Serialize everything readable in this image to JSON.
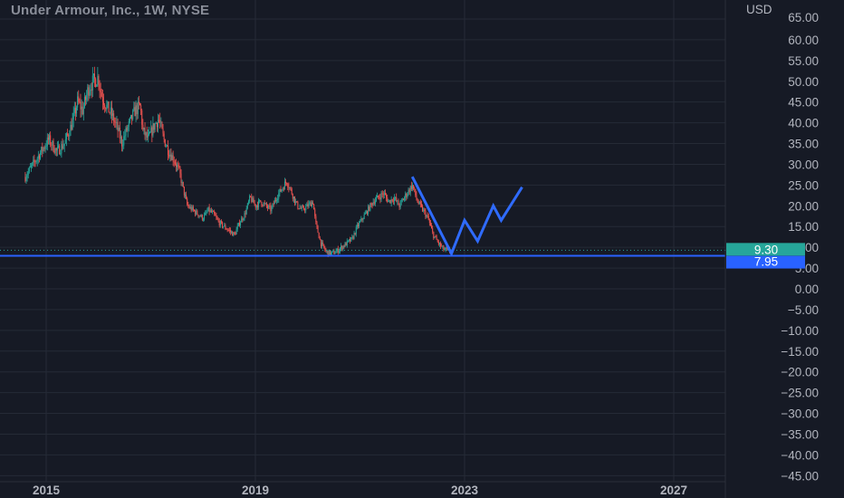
{
  "chart_data": {
    "type": "candlestick",
    "title": "Under Armour, Inc., 1W, NYSE",
    "currency": "USD",
    "ylim": [
      -46,
      66
    ],
    "xlim": [
      2014.65,
      2028.4
    ],
    "y_ticks": [
      "65.00",
      "60.00",
      "55.00",
      "50.00",
      "45.00",
      "40.00",
      "35.00",
      "30.00",
      "25.00",
      "20.00",
      "15.00",
      "10.00",
      "5.00",
      "0.00",
      "−5.00",
      "−10.00",
      "−15.00",
      "−20.00",
      "−25.00",
      "−30.00",
      "−35.00",
      "−40.00",
      "−45.00"
    ],
    "y_tick_values": [
      65,
      60,
      55,
      50,
      45,
      40,
      35,
      30,
      25,
      20,
      15,
      10,
      5,
      0,
      -5,
      -10,
      -15,
      -20,
      -25,
      -30,
      -35,
      -40,
      -45
    ],
    "x_ticks": [
      {
        "label": "2015",
        "value": 2015.0
      },
      {
        "label": "2019",
        "value": 2019.0
      },
      {
        "label": "2023",
        "value": 2023.0
      },
      {
        "label": "2027",
        "value": 2027.0
      }
    ],
    "grid": true,
    "price_path": [
      [
        2014.6,
        27
      ],
      [
        2014.75,
        30
      ],
      [
        2014.9,
        33
      ],
      [
        2015.05,
        36
      ],
      [
        2015.2,
        33
      ],
      [
        2015.35,
        35
      ],
      [
        2015.5,
        40
      ],
      [
        2015.6,
        45
      ],
      [
        2015.7,
        43
      ],
      [
        2015.8,
        48
      ],
      [
        2015.9,
        50
      ],
      [
        2016.0,
        51
      ],
      [
        2016.05,
        47
      ],
      [
        2016.15,
        44
      ],
      [
        2016.25,
        42
      ],
      [
        2016.35,
        39
      ],
      [
        2016.45,
        35
      ],
      [
        2016.5,
        37
      ],
      [
        2016.6,
        40
      ],
      [
        2016.7,
        43
      ],
      [
        2016.8,
        44
      ],
      [
        2016.85,
        38
      ],
      [
        2016.95,
        36
      ],
      [
        2017.05,
        39
      ],
      [
        2017.15,
        41
      ],
      [
        2017.25,
        36
      ],
      [
        2017.35,
        33
      ],
      [
        2017.45,
        31
      ],
      [
        2017.55,
        28
      ],
      [
        2017.62,
        24
      ],
      [
        2017.7,
        20
      ],
      [
        2017.8,
        19
      ],
      [
        2017.9,
        18
      ],
      [
        2018.0,
        17
      ],
      [
        2018.1,
        19
      ],
      [
        2018.2,
        18
      ],
      [
        2018.3,
        16
      ],
      [
        2018.4,
        15
      ],
      [
        2018.5,
        14
      ],
      [
        2018.6,
        13
      ],
      [
        2018.7,
        16
      ],
      [
        2018.8,
        18
      ],
      [
        2018.9,
        22
      ],
      [
        2019.0,
        20
      ],
      [
        2019.1,
        21
      ],
      [
        2019.2,
        20
      ],
      [
        2019.3,
        19
      ],
      [
        2019.4,
        22
      ],
      [
        2019.5,
        24
      ],
      [
        2019.6,
        26
      ],
      [
        2019.7,
        23
      ],
      [
        2019.8,
        20
      ],
      [
        2019.9,
        19
      ],
      [
        2020.0,
        20
      ],
      [
        2020.1,
        21
      ],
      [
        2020.15,
        16
      ],
      [
        2020.25,
        11
      ],
      [
        2020.35,
        9
      ],
      [
        2020.45,
        8.5
      ],
      [
        2020.55,
        9
      ],
      [
        2020.65,
        10
      ],
      [
        2020.75,
        11
      ],
      [
        2020.85,
        12
      ],
      [
        2020.95,
        15
      ],
      [
        2021.05,
        17
      ],
      [
        2021.15,
        19
      ],
      [
        2021.25,
        21
      ],
      [
        2021.35,
        22
      ],
      [
        2021.45,
        23
      ],
      [
        2021.55,
        21
      ],
      [
        2021.65,
        22
      ],
      [
        2021.75,
        20
      ],
      [
        2021.85,
        22
      ],
      [
        2021.95,
        24
      ],
      [
        2022.0,
        25
      ],
      [
        2022.1,
        21
      ],
      [
        2022.2,
        19
      ],
      [
        2022.3,
        17
      ],
      [
        2022.4,
        13
      ],
      [
        2022.5,
        11
      ],
      [
        2022.6,
        9.5
      ],
      [
        2022.7,
        9
      ],
      [
        2022.78,
        9.3
      ]
    ],
    "projection_path": [
      [
        2022.0,
        27
      ],
      [
        2022.75,
        8.5
      ],
      [
        2023.0,
        16.5
      ],
      [
        2023.25,
        11.5
      ],
      [
        2023.55,
        20
      ],
      [
        2023.7,
        16.5
      ],
      [
        2024.1,
        24.5
      ]
    ],
    "current_price": {
      "label": "9.30",
      "value": 9.3,
      "color": "#26a69a"
    },
    "support_line": {
      "label": "7.95",
      "value": 7.95,
      "color": "#2962ff"
    },
    "colors": {
      "up": "#26a69a",
      "down": "#ef5350",
      "projection": "#2f6bff",
      "grid": "#252a36",
      "background": "#161a25"
    }
  }
}
